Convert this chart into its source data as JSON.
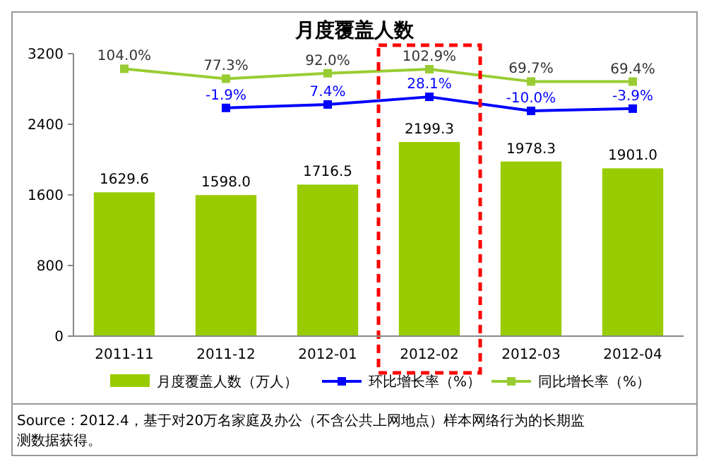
{
  "chart_data": {
    "type": "bar",
    "title": "月度覆盖人数",
    "categories": [
      "2011-11",
      "2011-12",
      "2012-01",
      "2012-02",
      "2012-03",
      "2012-04"
    ],
    "series": [
      {
        "name": "月度覆盖人数（万人）",
        "color": "#99cc00",
        "values": [
          1629.6,
          1598.0,
          1716.5,
          2199.3,
          1978.3,
          1901.0
        ],
        "value_labels": [
          "1629.6",
          "1598.0",
          "1716.5",
          "2199.3",
          "1978.3",
          "1901.0"
        ]
      },
      {
        "name": "环比增长率（%）",
        "type": "line",
        "axis": "y2",
        "color": "#0000ff",
        "values": [
          null,
          -1.9,
          7.4,
          28.1,
          -10.0,
          -3.9
        ],
        "value_labels": [
          null,
          "-1.9%",
          "7.4%",
          "28.1%",
          "-10.0%",
          "-3.9%"
        ]
      },
      {
        "name": "同比增长率（%）",
        "type": "line",
        "axis": "y2",
        "color": "#99cc33",
        "values": [
          104.0,
          77.3,
          92.0,
          102.9,
          69.7,
          69.4
        ],
        "value_labels": [
          "104.0%",
          "77.3%",
          "92.0%",
          "102.9%",
          "69.7%",
          "69.4%"
        ]
      }
    ],
    "ylim": [
      0,
      3200
    ],
    "yticks": [
      0,
      800,
      1600,
      2400,
      3200
    ],
    "y2lim": [
      -620,
      145
    ],
    "tick_labels": "xy",
    "marker": "square",
    "legend": "bottom",
    "grid": false,
    "annotations": [
      "Source：2012.4，基于对20万名家庭及办公（不含公共上网地点）样本网络行为的长期监测数据获得。"
    ]
  }
}
